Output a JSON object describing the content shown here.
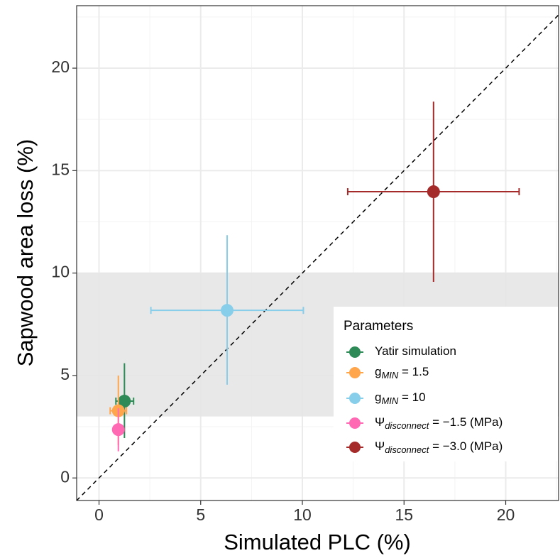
{
  "chart_data": {
    "type": "scatter",
    "xlabel": "Simulated PLC (%)",
    "ylabel": "Sapwood area loss (%)",
    "xlim": [
      -1.1,
      22.6
    ],
    "ylim": [
      -1.1,
      23.05
    ],
    "xticks": [
      0,
      5,
      10,
      15,
      20
    ],
    "yticks": [
      0,
      5,
      10,
      15,
      20
    ],
    "xminor": [
      2.5,
      7.5,
      12.5,
      17.5,
      22.5
    ],
    "yminor": [
      2.5,
      7.5,
      12.5,
      17.5,
      22.5
    ],
    "grid": true,
    "diagonal": true,
    "band": {
      "ymin": 3,
      "ymax": 10,
      "color": "#e6e6e6"
    },
    "legend_title": "Parameters",
    "legend": "bottom-right",
    "series": [
      {
        "name": [
          {
            "text": "Yatir simulation"
          }
        ],
        "color": "#2e8b57",
        "x": 1.25,
        "y": 3.75,
        "xmin": 0.83,
        "xmax": 1.7,
        "ymin": 1.95,
        "ymax": 5.6
      },
      {
        "name": [
          {
            "text": "g"
          },
          {
            "text": "MIN",
            "sub": true
          },
          {
            "text": " = 1.5"
          }
        ],
        "color": "#ffa64d",
        "x": 0.95,
        "y": 3.28,
        "xmin": 0.55,
        "xmax": 1.35,
        "ymin": 1.6,
        "ymax": 5.0
      },
      {
        "name": [
          {
            "text": "g"
          },
          {
            "text": "MIN",
            "sub": true
          },
          {
            "text": " = 10"
          }
        ],
        "color": "#87ceeb",
        "x": 6.3,
        "y": 8.18,
        "xmin": 2.55,
        "xmax": 10.05,
        "ymin": 4.55,
        "ymax": 11.85
      },
      {
        "name": [
          {
            "text": "Ψ"
          },
          {
            "text": "disconnect",
            "sub": true
          },
          {
            "text": " = −1.5 (MPa)"
          }
        ],
        "color": "#ff69b4",
        "x": 0.95,
        "y": 2.36,
        "xmin": 0.95,
        "xmax": 0.95,
        "ymin": 1.3,
        "ymax": 3.4
      },
      {
        "name": [
          {
            "text": "Ψ"
          },
          {
            "text": "disconnect",
            "sub": true
          },
          {
            "text": " = −3.0 (MPa)"
          }
        ],
        "color": "#a52a2a",
        "x": 16.45,
        "y": 13.97,
        "xmin": 12.23,
        "xmax": 20.66,
        "ymin": 9.57,
        "ymax": 18.37
      }
    ]
  }
}
